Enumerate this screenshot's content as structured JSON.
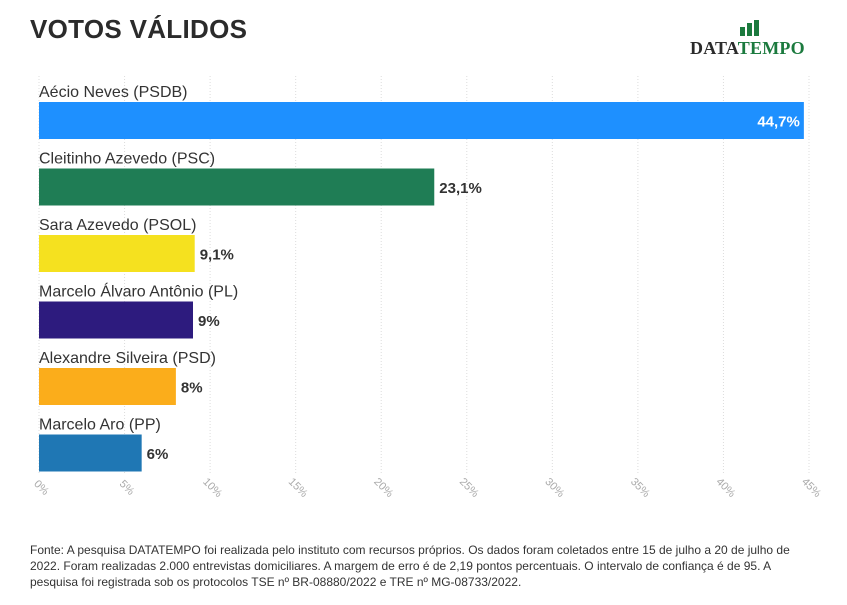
{
  "header": {
    "title": "VOTOS VÁLIDOS"
  },
  "logo": {
    "text_dark": "DATA",
    "text_green": "TEMPO"
  },
  "footer": {
    "source_text": "Fonte: A pesquisa DATATEMPO foi realizada pelo instituto com recursos próprios. Os dados foram coletados entre 15 de julho a 20 de julho de 2022. Foram realizadas 2.000 entrevistas domiciliares. A margem de erro é de 2,19 pontos percentuais. O intervalo de confiança é de 95. A pesquisa foi registrada sob os protocolos TSE nº BR-08880/2022 e TRE nº MG-08733/2022."
  },
  "chart_data": {
    "type": "bar",
    "orientation": "horizontal",
    "title": "VOTOS VÁLIDOS",
    "xlabel": "",
    "ylabel": "",
    "xlim": [
      0,
      45
    ],
    "grid": true,
    "categories": [
      "Aécio Neves (PSDB)",
      "Cleitinho Azevedo (PSC)",
      "Sara Azevedo (PSOL)",
      "Marcelo Álvaro Antônio (PL)",
      "Alexandre Silveira (PSD)",
      "Marcelo Aro (PP)"
    ],
    "values": [
      44.7,
      23.1,
      9.1,
      9,
      8,
      6
    ],
    "value_labels": [
      "44,7%",
      "23,1%",
      "9,1%",
      "9%",
      "8%",
      "6%"
    ],
    "colors": [
      "#1e90ff",
      "#1f7d55",
      "#f5e11f",
      "#2d1b7e",
      "#fbad1b",
      "#1f77b4"
    ],
    "ticks": [
      0,
      5,
      10,
      15,
      20,
      25,
      30,
      35,
      40,
      45
    ],
    "tick_labels": [
      "0%",
      "5%",
      "10%",
      "15%",
      "20%",
      "25%",
      "30%",
      "35%",
      "40%",
      "45%"
    ]
  }
}
